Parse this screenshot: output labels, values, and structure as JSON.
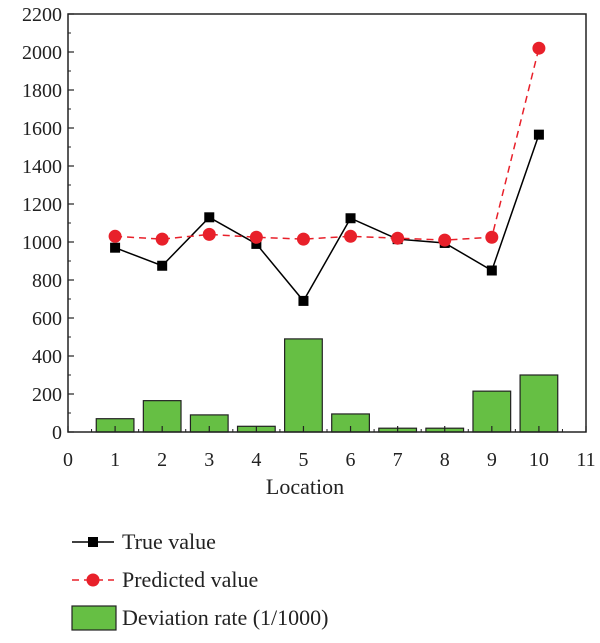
{
  "chart_data": {
    "type": "bar",
    "xlabel": "Location",
    "ylabel": "",
    "xlim": [
      0,
      11
    ],
    "ylim": [
      0,
      2200
    ],
    "x_ticks": [
      "0",
      "1",
      "2",
      "3",
      "4",
      "5",
      "6",
      "7",
      "8",
      "9",
      "10",
      "11"
    ],
    "y_ticks": [
      "0",
      "200",
      "400",
      "600",
      "800",
      "1000",
      "1200",
      "1400",
      "1600",
      "1800",
      "2000",
      "2200"
    ],
    "grid": false,
    "legend_position": "bottom",
    "x": [
      1,
      2,
      3,
      4,
      5,
      6,
      7,
      8,
      9,
      10
    ],
    "series": [
      {
        "name": "True value",
        "kind": "line",
        "marker": "square",
        "color": "#000000",
        "values": [
          970,
          875,
          1130,
          990,
          690,
          1125,
          1015,
          995,
          850,
          1565
        ]
      },
      {
        "name": "Predicted value",
        "kind": "line",
        "marker": "circle",
        "line_style": "dashed",
        "color": "#e8202a",
        "values": [
          1030,
          1015,
          1040,
          1025,
          1015,
          1030,
          1020,
          1010,
          1025,
          2020
        ]
      },
      {
        "name": "Deviation rate (1/1000)",
        "kind": "bar",
        "color": "#66bf44",
        "values": [
          70,
          165,
          90,
          30,
          490,
          95,
          20,
          20,
          215,
          300
        ]
      }
    ]
  }
}
